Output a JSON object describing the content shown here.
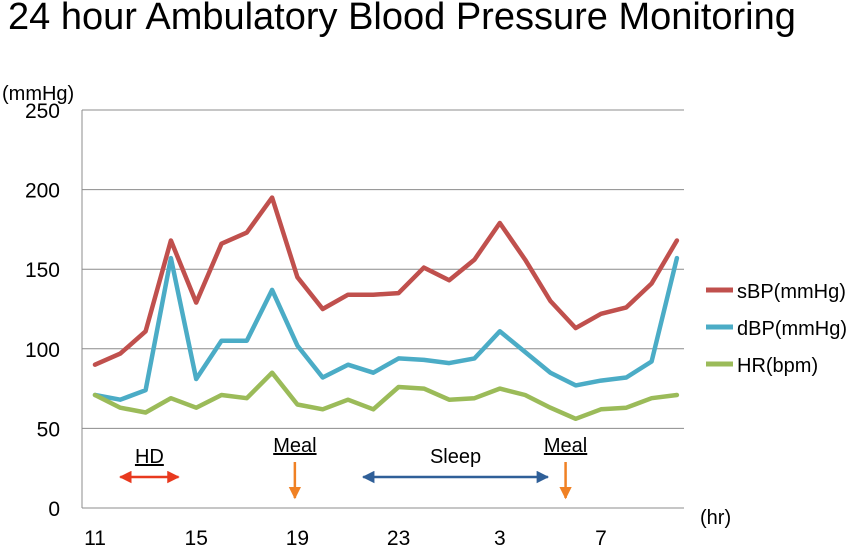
{
  "chart_data": {
    "type": "line",
    "title": "24 hour Ambulatory Blood Pressure Monitoring",
    "y_unit": "(mmHg)",
    "x_unit": "(hr)",
    "ylim": [
      0,
      250
    ],
    "y_ticks": [
      "0",
      "50",
      "100",
      "150",
      "200",
      "250"
    ],
    "x_tick_labels": [
      "11",
      "15",
      "19",
      "23",
      "3",
      "7"
    ],
    "x": [
      "11",
      "12",
      "13",
      "14",
      "15",
      "16",
      "17",
      "18",
      "19",
      "20",
      "21",
      "22",
      "23",
      "24",
      "1",
      "2",
      "3",
      "4",
      "5",
      "6",
      "7",
      "8",
      "9",
      "10"
    ],
    "grid": true,
    "legend_position": "right",
    "series": [
      {
        "name": "sBP(mmHg)",
        "color": "#c0504d",
        "values": [
          90,
          97,
          111,
          168,
          129,
          166,
          173,
          195,
          145,
          125,
          134,
          134,
          135,
          151,
          143,
          156,
          179,
          156,
          130,
          113,
          122,
          126,
          141,
          168
        ]
      },
      {
        "name": "dBP(mmHg)",
        "color": "#4bacc6",
        "values": [
          71,
          68,
          74,
          157,
          81,
          105,
          105,
          137,
          102,
          82,
          90,
          85,
          94,
          93,
          91,
          94,
          111,
          98,
          85,
          77,
          80,
          82,
          92,
          157
        ]
      },
      {
        "name": "HR(bpm)",
        "color": "#9bbb59",
        "values": [
          71,
          63,
          60,
          69,
          63,
          71,
          69,
          85,
          65,
          62,
          68,
          62,
          76,
          75,
          68,
          69,
          75,
          71,
          63,
          56,
          62,
          63,
          69,
          71
        ]
      }
    ],
    "annotations": [
      {
        "label": "HD",
        "type": "double-arrow",
        "x_start": 12,
        "x_end": 14.3,
        "color": "#e8391e"
      },
      {
        "label": "Meal",
        "type": "down-arrow",
        "x": 18.9,
        "color": "#f08124"
      },
      {
        "label": "Sleep",
        "type": "double-arrow",
        "x_start": 21.6,
        "x_end": 28.9,
        "color": "#2f5f98"
      },
      {
        "label": "Meal",
        "type": "down-arrow",
        "x": 29.6,
        "color": "#f08124"
      }
    ]
  }
}
